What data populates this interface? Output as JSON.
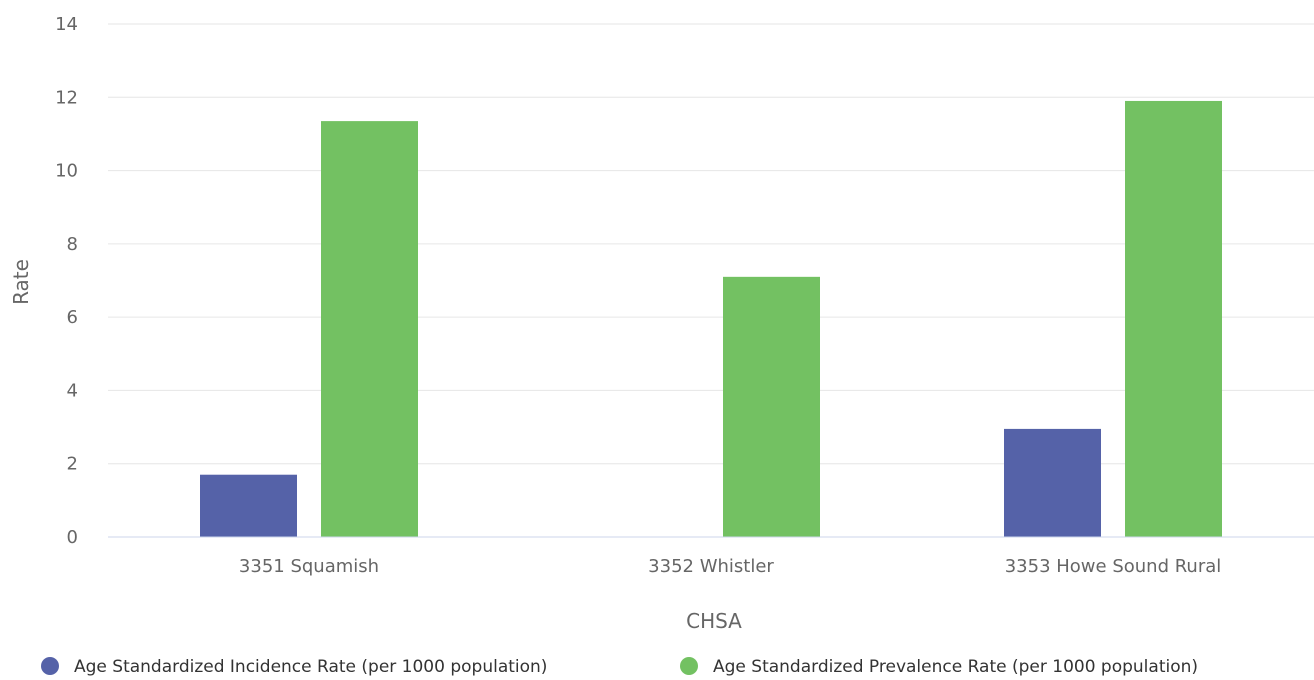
{
  "chart_data": {
    "type": "bar",
    "categories": [
      "3351 Squamish",
      "3352 Whistler",
      "3353 Howe Sound Rural"
    ],
    "series": [
      {
        "name": "Age Standardized Incidence Rate (per 1000 population)",
        "values": [
          1.7,
          null,
          2.95
        ],
        "color": "#5562a8"
      },
      {
        "name": "Age Standardized Prevalence Rate (per 1000 population)",
        "values": [
          11.35,
          7.1,
          11.9
        ],
        "color": "#73c162"
      }
    ],
    "xlabel": "CHSA",
    "ylabel": "Rate",
    "ylim": [
      0,
      14
    ],
    "yticks": [
      0,
      2,
      4,
      6,
      8,
      10,
      12,
      14
    ],
    "grid": true,
    "legend": "bottom"
  }
}
